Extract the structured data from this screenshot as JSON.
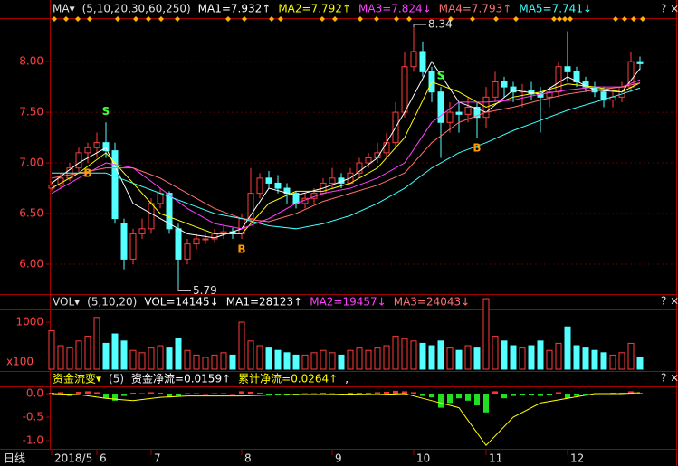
{
  "chart_data": {
    "type": "candlestick",
    "header": [
      {
        "text": "MA▾",
        "color": "#e0e0e0"
      },
      {
        "text": "(5,10,20,30,60,250)",
        "color": "#e0e0e0"
      },
      {
        "text": "MA1=7.932↑",
        "color": "#ffffff"
      },
      {
        "text": "MA2=7.792↑",
        "color": "#ffff00"
      },
      {
        "text": "MA3=7.824↓",
        "color": "#ff40ff"
      },
      {
        "text": "MA4=7.793↑",
        "color": "#ff7070"
      },
      {
        "text": "MA5=7.741↓",
        "color": "#40ffff"
      }
    ],
    "controls": "? ×",
    "categories": [
      "2018/5",
      null,
      null,
      null,
      null,
      "6",
      null,
      null,
      null,
      null,
      null,
      "7",
      null,
      null,
      null,
      null,
      null,
      null,
      null,
      null,
      null,
      "8",
      null,
      null,
      null,
      null,
      null,
      null,
      null,
      null,
      null,
      "9",
      null,
      null,
      null,
      null,
      null,
      null,
      null,
      null,
      "10",
      null,
      null,
      null,
      null,
      null,
      null,
      null,
      "11",
      null,
      null,
      null,
      null,
      null,
      null,
      null,
      null,
      "12",
      null,
      null,
      null,
      null,
      null,
      null,
      null,
      null
    ],
    "open": [
      6.75,
      6.78,
      6.85,
      6.95,
      7.1,
      7.15,
      7.2,
      7.12,
      6.4,
      6.05,
      6.3,
      6.35,
      6.6,
      6.7,
      6.35,
      6.05,
      6.2,
      6.25,
      6.25,
      6.3,
      6.32,
      6.3,
      6.45,
      6.7,
      6.85,
      6.8,
      6.75,
      6.7,
      6.6,
      6.65,
      6.7,
      6.8,
      6.85,
      6.8,
      6.9,
      7.0,
      7.05,
      7.1,
      7.2,
      7.5,
      7.95,
      8.1,
      7.9,
      7.7,
      7.4,
      7.5,
      7.48,
      7.55,
      7.45,
      7.65,
      7.8,
      7.75,
      7.7,
      7.72,
      7.68,
      7.65,
      7.7,
      7.95,
      7.9,
      7.8,
      7.75,
      7.7,
      7.62,
      7.65,
      7.75,
      8.0
    ],
    "high": [
      6.82,
      6.9,
      7.0,
      7.15,
      7.2,
      7.3,
      7.4,
      7.2,
      6.45,
      6.35,
      6.45,
      6.65,
      6.75,
      6.72,
      6.4,
      6.25,
      6.3,
      6.3,
      6.35,
      6.38,
      6.36,
      6.5,
      6.95,
      6.9,
      6.92,
      6.88,
      6.8,
      6.72,
      6.7,
      6.75,
      6.85,
      6.95,
      6.9,
      6.95,
      7.05,
      7.1,
      7.2,
      7.3,
      7.6,
      8.1,
      8.34,
      8.2,
      7.95,
      7.75,
      7.6,
      7.6,
      7.65,
      7.6,
      7.75,
      7.9,
      7.85,
      7.8,
      7.78,
      7.8,
      7.75,
      7.72,
      8.0,
      8.3,
      7.95,
      7.85,
      7.8,
      7.75,
      7.7,
      7.8,
      8.1,
      8.05
    ],
    "low": [
      6.72,
      6.75,
      6.82,
      6.9,
      7.0,
      7.05,
      7.05,
      6.4,
      5.95,
      6.0,
      6.25,
      6.3,
      6.55,
      6.3,
      5.79,
      6.0,
      6.15,
      6.2,
      6.22,
      6.25,
      6.25,
      6.25,
      6.4,
      6.65,
      6.75,
      6.7,
      6.6,
      6.55,
      6.55,
      6.6,
      6.68,
      6.75,
      6.75,
      6.78,
      6.85,
      6.95,
      7.0,
      7.05,
      7.15,
      7.45,
      7.9,
      7.85,
      7.6,
      7.05,
      7.3,
      7.3,
      7.4,
      7.25,
      7.35,
      7.6,
      7.65,
      7.6,
      7.55,
      7.62,
      7.3,
      7.55,
      7.65,
      7.8,
      7.75,
      7.7,
      7.65,
      7.55,
      7.55,
      7.6,
      7.7,
      7.92
    ],
    "close": [
      6.78,
      6.85,
      6.95,
      7.1,
      7.15,
      7.2,
      7.12,
      6.45,
      6.05,
      6.3,
      6.35,
      6.6,
      6.7,
      6.35,
      6.05,
      6.2,
      6.25,
      6.25,
      6.3,
      6.32,
      6.3,
      6.45,
      6.7,
      6.85,
      6.8,
      6.75,
      6.7,
      6.6,
      6.65,
      6.7,
      6.8,
      6.85,
      6.8,
      6.9,
      7.0,
      7.05,
      7.1,
      7.2,
      7.5,
      7.95,
      8.1,
      7.9,
      7.7,
      7.4,
      7.5,
      7.48,
      7.55,
      7.45,
      7.65,
      7.8,
      7.75,
      7.7,
      7.72,
      7.68,
      7.65,
      7.7,
      7.95,
      7.9,
      7.8,
      7.75,
      7.7,
      7.62,
      7.65,
      7.75,
      8.0,
      7.98
    ],
    "up_color": "#ff3c3c",
    "down_color": "#54ffff",
    "ylim": [
      5.705,
      8.43
    ],
    "yticks": [
      {
        "value": 6,
        "label": "6.00"
      },
      {
        "value": 6.5,
        "label": "6.50"
      },
      {
        "value": 7,
        "label": "7.00"
      },
      {
        "value": 7.5,
        "label": "7.50"
      },
      {
        "value": 8,
        "label": "8.00"
      }
    ],
    "ma_index": [
      0,
      3,
      6,
      9,
      12,
      15,
      18,
      21,
      24,
      27,
      30,
      33,
      36,
      39,
      42,
      45,
      48,
      51,
      54,
      57,
      60,
      63,
      65
    ],
    "ma_lines": [
      {
        "color": "#ffffff",
        "values": [
          6.8,
          7.0,
          7.15,
          6.6,
          6.45,
          6.3,
          6.26,
          6.35,
          6.75,
          6.68,
          6.75,
          6.85,
          7.05,
          7.5,
          8.0,
          7.6,
          7.5,
          7.72,
          7.68,
          7.85,
          7.72,
          7.7,
          7.93
        ]
      },
      {
        "color": "#ffff00",
        "values": [
          6.75,
          6.9,
          7.1,
          6.8,
          6.5,
          6.4,
          6.3,
          6.3,
          6.6,
          6.72,
          6.72,
          6.8,
          6.95,
          7.25,
          7.8,
          7.7,
          7.55,
          7.65,
          7.7,
          7.78,
          7.75,
          7.7,
          7.79
        ]
      },
      {
        "color": "#ff40ff",
        "values": [
          6.7,
          6.85,
          7.0,
          6.95,
          6.75,
          6.55,
          6.4,
          6.35,
          6.45,
          6.6,
          6.7,
          6.75,
          6.85,
          7.0,
          7.4,
          7.6,
          7.6,
          7.62,
          7.68,
          7.72,
          7.75,
          7.75,
          7.82
        ]
      },
      {
        "color": "#ff7070",
        "values": [
          6.85,
          6.9,
          6.95,
          6.95,
          6.85,
          6.7,
          6.55,
          6.45,
          6.42,
          6.5,
          6.62,
          6.7,
          6.78,
          6.9,
          7.2,
          7.4,
          7.5,
          7.55,
          7.62,
          7.68,
          7.72,
          7.75,
          7.79
        ]
      },
      {
        "color": "#40ffff",
        "values": [
          6.9,
          6.9,
          6.9,
          6.8,
          6.7,
          6.6,
          6.5,
          6.45,
          6.38,
          6.35,
          6.4,
          6.48,
          6.6,
          6.75,
          6.95,
          7.1,
          7.2,
          7.32,
          7.42,
          7.52,
          7.6,
          7.68,
          7.74
        ]
      }
    ],
    "annotations": [
      {
        "text": "8.34",
        "at": 40
      },
      {
        "text": "5.79",
        "at": 14
      }
    ],
    "signals": [
      {
        "text": "B",
        "at": 4
      },
      {
        "text": "S",
        "at": 6
      },
      {
        "text": "B",
        "at": 21
      },
      {
        "text": "S",
        "at": 43
      },
      {
        "text": "B",
        "at": 47
      }
    ],
    "volume": {
      "header": [
        {
          "text": "VOL▾",
          "color": "#e0e0e0"
        },
        {
          "text": "(5,10,20)",
          "color": "#e0e0e0"
        },
        {
          "text": "VOL=14145↓",
          "color": "#ffffff"
        },
        {
          "text": "MA1=28123↑",
          "color": "#ffffff"
        },
        {
          "text": "MA2=19457↓",
          "color": "#ff40ff"
        },
        {
          "text": "MA3=24043↓",
          "color": "#ff7070"
        }
      ],
      "unit": "x100",
      "values": [
        820,
        500,
        450,
        600,
        700,
        1100,
        550,
        750,
        600,
        400,
        350,
        450,
        500,
        450,
        650,
        400,
        300,
        250,
        300,
        350,
        300,
        1000,
        600,
        500,
        450,
        400,
        350,
        300,
        300,
        350,
        400,
        350,
        300,
        400,
        450,
        400,
        450,
        500,
        700,
        650,
        600,
        550,
        500,
        600,
        450,
        400,
        500,
        450,
        1500,
        700,
        600,
        500,
        450,
        500,
        600,
        400,
        550,
        900,
        500,
        450,
        400,
        350,
        300,
        350,
        550,
        250
      ],
      "ylim": [
        0,
        1270
      ],
      "yticks": [
        1000
      ]
    },
    "flow": {
      "header": [
        {
          "text": "资金流变▾",
          "color": "#ffff00"
        },
        {
          "text": "(5)",
          "color": "#e0e0e0"
        },
        {
          "text": "资金净流=0.0159↑",
          "color": "#ffffff"
        },
        {
          "text": "累计净流=0.0264↑",
          "color": "#ffff00"
        },
        {
          "text": ",",
          "color": "#ffffff"
        }
      ],
      "values": [
        0.02,
        0.03,
        -0.05,
        0.04,
        0.05,
        0.03,
        -0.1,
        -0.15,
        -0.05,
        0.02,
        0.01,
        0.03,
        0.02,
        -0.08,
        -0.05,
        0.01,
        0.01,
        0,
        0.01,
        0.01,
        0,
        0.05,
        0.04,
        0.02,
        -0.02,
        -0.02,
        -0.03,
        -0.03,
        0.01,
        0.01,
        0.02,
        0.01,
        -0.01,
        0.02,
        0.02,
        0.02,
        0.03,
        0.04,
        0.06,
        0.05,
        0.03,
        -0.05,
        -0.08,
        -0.3,
        -0.2,
        -0.1,
        -0.15,
        -0.25,
        -0.4,
        0.05,
        -0.1,
        -0.05,
        -0.03,
        -0.02,
        -0.05,
        -0.02,
        0.03,
        -0.1,
        -0.05,
        -0.02,
        -0.01,
        0.01,
        0.02,
        0.02,
        0.05,
        0.02
      ],
      "line": [
        0.0,
        -0.02,
        -0.1,
        -0.15,
        -0.08,
        -0.05,
        -0.05,
        -0.05,
        -0.03,
        -0.02,
        -0.02,
        -0.01,
        -0.02,
        0.0,
        -0.15,
        -0.3,
        -1.1,
        -0.5,
        -0.2,
        -0.1,
        0.0,
        0.0,
        0.02
      ],
      "ylim": [
        -1.154,
        0.154
      ],
      "yticks": [
        {
          "value": 0,
          "label": "0.0"
        },
        {
          "value": -0.5,
          "label": "-0.5"
        },
        {
          "value": -1,
          "label": "-1.0"
        }
      ]
    },
    "period": "日线"
  }
}
